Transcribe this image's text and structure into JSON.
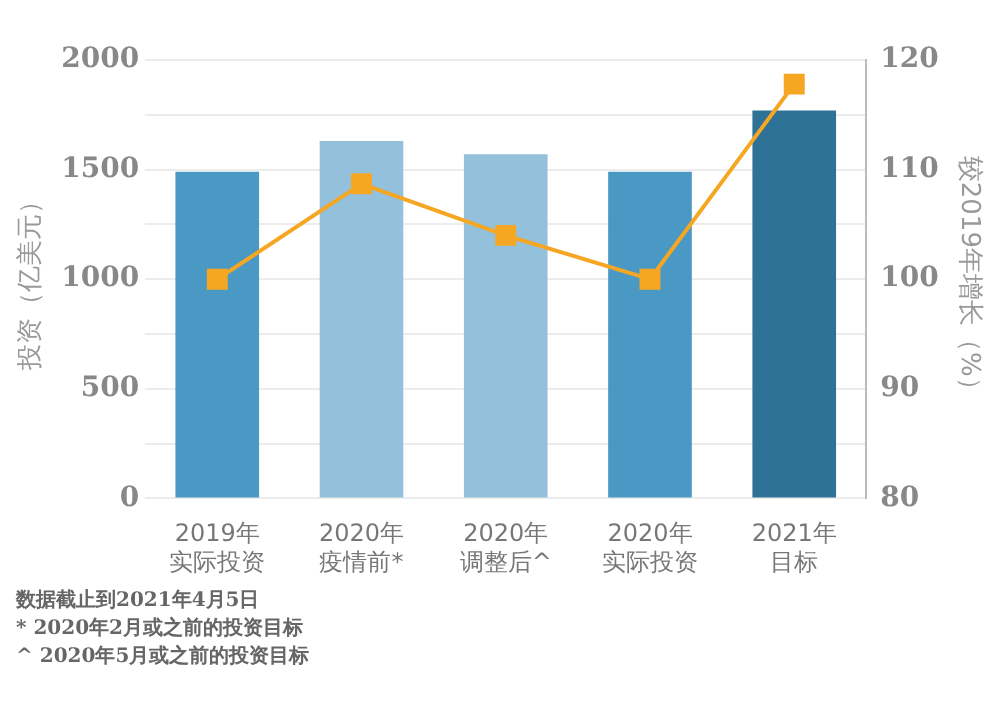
{
  "chart_data": {
    "type": "bar",
    "ylabel": "投资（亿美元）",
    "y2label": "较2019年增长（%）",
    "categories": [
      "2019年实际投资",
      "2020年疫情前*",
      "2020年调整后^",
      "2020年实际投资",
      "2021年目标"
    ],
    "series": [
      {
        "colors": [
          "#4a98c4",
          "#93c1dc",
          "#93c1dc",
          "#4a98c4",
          "#2e7397"
        ],
        "values": [
          1490,
          1630,
          1570,
          1490,
          1770
        ]
      },
      {
        "type": "line",
        "axis": "y2",
        "color": "#f5a623",
        "marker": "square",
        "values": [
          100,
          108.7,
          104,
          100,
          117.8
        ]
      }
    ],
    "ylim": [
      0,
      2000
    ],
    "yticks": [
      0,
      {
        "value": 250,
        "label": null
      },
      500,
      {
        "value": 750,
        "label": null
      },
      1000,
      {
        "value": 1250,
        "label": null
      },
      1500,
      {
        "value": 1750,
        "label": null
      },
      2000
    ],
    "y2lim": [
      80,
      120
    ],
    "y2ticks": [
      80,
      90,
      100,
      110,
      120
    ],
    "grid": "y",
    "legend": false,
    "annotations": [
      "数据截止到2021年4月5日",
      "* 2020年2月或之前的投资目标",
      "^ 2020年5月或之前的投资目标"
    ]
  }
}
